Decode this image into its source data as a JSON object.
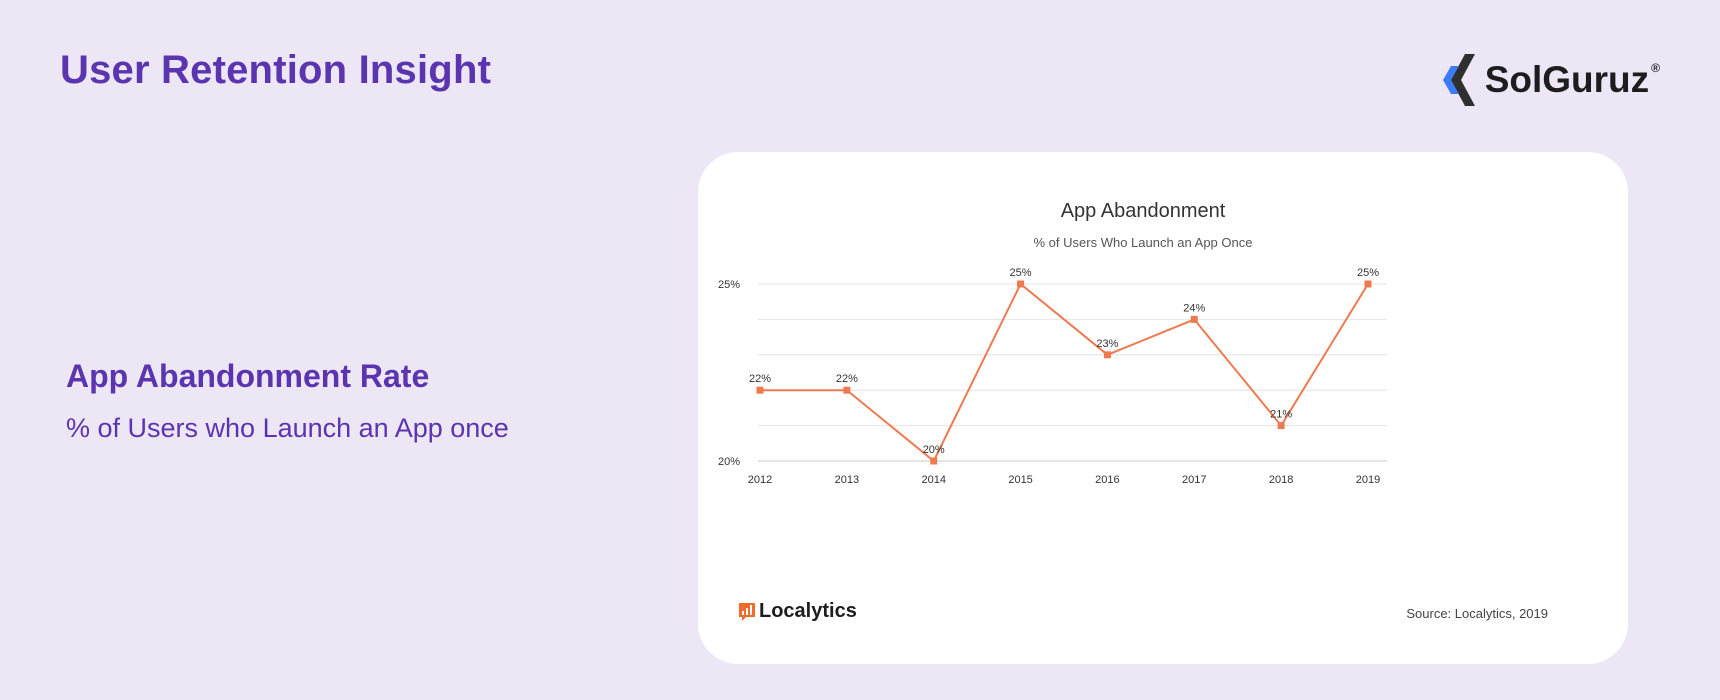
{
  "header": {
    "title": "User Retention Insight",
    "brand_name": "SolGuruz",
    "brand_reg": "®"
  },
  "info": {
    "title": "App Abandonment Rate",
    "subtitle": "% of Users who Launch an App once"
  },
  "colors": {
    "accent": "#5b34b0",
    "line": "#f07a4f",
    "background": "#ece6f5"
  },
  "chart_data": {
    "type": "line",
    "title": "App Abandonment",
    "subtitle": "% of Users Who Launch an App Once",
    "x": [
      "2012",
      "2013",
      "2014",
      "2015",
      "2016",
      "2017",
      "2018",
      "2019"
    ],
    "series": [
      {
        "values": [
          22,
          22,
          20,
          25,
          23,
          24,
          21,
          25
        ]
      }
    ],
    "data_labels": [
      "22%",
      "22%",
      "20%",
      "25%",
      "23%",
      "24%",
      "21%",
      "25%"
    ],
    "ylim": [
      20,
      25
    ],
    "yticks": [
      20,
      25
    ],
    "ytick_labels": [
      "20%",
      "25%"
    ],
    "gridlines": [
      20,
      21,
      22,
      23,
      24,
      25
    ],
    "grid": true,
    "legend": "none"
  },
  "footer": {
    "logo_text": "Localytics",
    "source": "Source: Localytics, 2019"
  }
}
